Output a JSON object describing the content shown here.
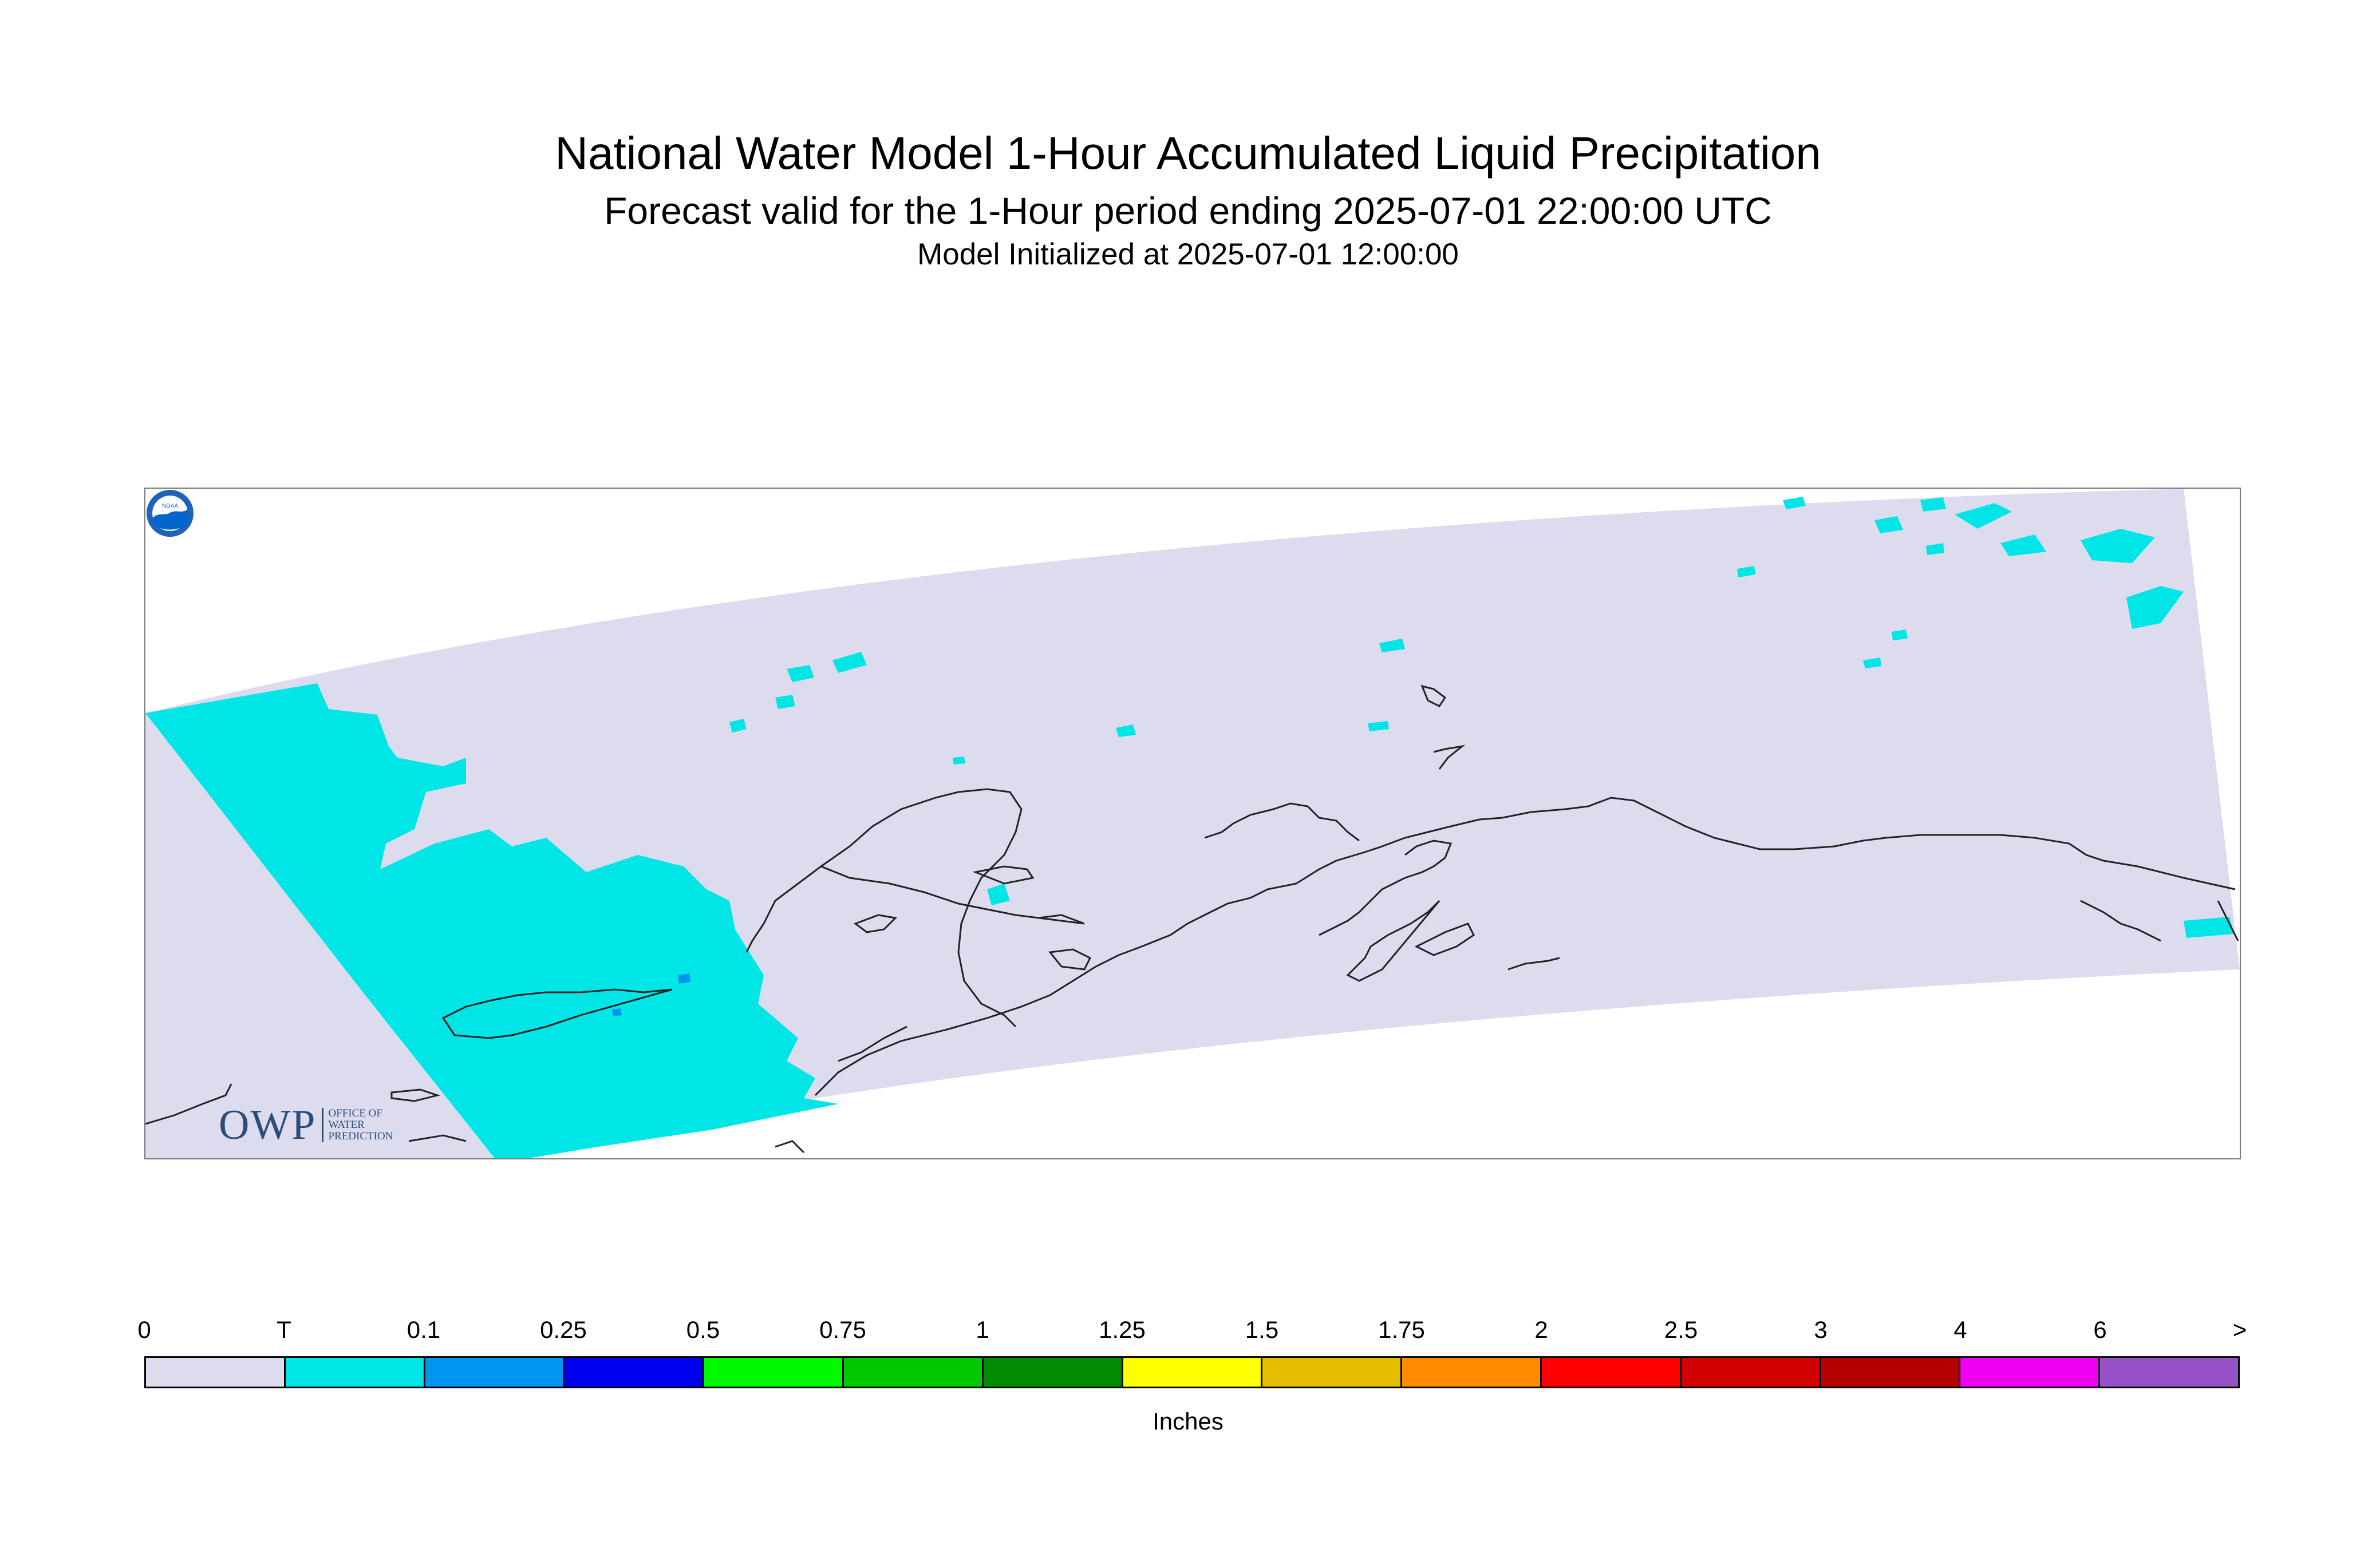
{
  "header": {
    "title": "National Water Model 1-Hour Accumulated Liquid Precipitation",
    "subtitle": "Forecast valid for the 1-Hour period ending 2025-07-01 22:00:00 UTC",
    "init_line": "Model Initialized at 2025-07-01 12:00:00"
  },
  "logos": {
    "owp_letters": "OWP",
    "owp_sub_1": "OFFICE OF",
    "owp_sub_2": "WATER",
    "owp_sub_3": "PREDICTION",
    "noaa_text": "NOAA"
  },
  "map": {
    "domain_fill_color": "#dcdcee",
    "trace_color": "#00e6e6",
    "light_rain_color": "#0096f0",
    "coastline_color": "#222222"
  },
  "legend": {
    "units": "Inches",
    "labels": [
      "0",
      "T",
      "0.1",
      "0.25",
      "0.5",
      "0.75",
      "1",
      "1.25",
      "1.5",
      "1.75",
      "2",
      "2.5",
      "3",
      "4",
      "6",
      ">"
    ],
    "colors": [
      "#dcdcee",
      "#00e6e6",
      "#0096f0",
      "#0000f0",
      "#00fa00",
      "#00c800",
      "#008c00",
      "#ffff00",
      "#e6be00",
      "#ff8c00",
      "#ff0000",
      "#d20000",
      "#b40000",
      "#f000f0",
      "#9650c8"
    ]
  }
}
